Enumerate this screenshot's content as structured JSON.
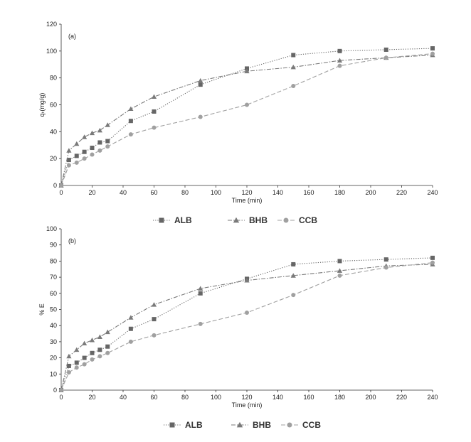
{
  "chart_data": [
    {
      "type": "line",
      "panel_label": "(a)",
      "xlabel": "Time (min)",
      "ylabel": "qₜ(mg/g)",
      "xlim": [
        0,
        240
      ],
      "ylim": [
        0,
        120
      ],
      "xticks": [
        0,
        20,
        40,
        60,
        80,
        100,
        120,
        140,
        160,
        180,
        200,
        220,
        240
      ],
      "yticks": [
        0,
        20,
        40,
        60,
        80,
        100,
        120
      ],
      "grid": false,
      "legend_position": "bottom",
      "series": [
        {
          "name": "ALB",
          "marker": "square",
          "line": "dotted",
          "color": "#666666",
          "x": [
            0,
            5,
            10,
            15,
            20,
            25,
            30,
            45,
            60,
            90,
            120,
            150,
            180,
            210,
            240
          ],
          "y": [
            0,
            19,
            22,
            25,
            28,
            32,
            33,
            48,
            55,
            75,
            87,
            97,
            100,
            101,
            102
          ]
        },
        {
          "name": "BHB",
          "marker": "triangle",
          "line": "dashdot",
          "color": "#7a7a7a",
          "x": [
            0,
            5,
            10,
            15,
            20,
            25,
            30,
            45,
            60,
            90,
            120,
            150,
            180,
            210,
            240
          ],
          "y": [
            0,
            26,
            31,
            36,
            39,
            41,
            45,
            57,
            66,
            78,
            85,
            88,
            93,
            95,
            97
          ]
        },
        {
          "name": "CCB",
          "marker": "circle",
          "line": "dashed",
          "color": "#a0a0a0",
          "x": [
            0,
            5,
            10,
            15,
            20,
            25,
            30,
            45,
            60,
            90,
            120,
            150,
            180,
            210,
            240
          ],
          "y": [
            0,
            15,
            17,
            20,
            23,
            26,
            29,
            38,
            43,
            51,
            60,
            74,
            89,
            95,
            98
          ]
        }
      ]
    },
    {
      "type": "line",
      "panel_label": "(b)",
      "xlabel": "Time (min)",
      "ylabel": "% E",
      "xlim": [
        0,
        240
      ],
      "ylim": [
        0,
        100
      ],
      "xticks": [
        0,
        20,
        40,
        60,
        80,
        100,
        120,
        140,
        160,
        180,
        200,
        220,
        240
      ],
      "yticks": [
        0,
        10,
        20,
        30,
        40,
        50,
        60,
        70,
        80,
        90,
        100
      ],
      "grid": false,
      "legend_position": "bottom",
      "series": [
        {
          "name": "ALB",
          "marker": "square",
          "line": "dotted",
          "color": "#666666",
          "x": [
            0,
            5,
            10,
            15,
            20,
            25,
            30,
            45,
            60,
            90,
            120,
            150,
            180,
            210,
            240
          ],
          "y": [
            0,
            15,
            17,
            20,
            23,
            25,
            27,
            38,
            44,
            60,
            69,
            78,
            80,
            81,
            82
          ]
        },
        {
          "name": "BHB",
          "marker": "triangle",
          "line": "dashdot",
          "color": "#7a7a7a",
          "x": [
            0,
            5,
            10,
            15,
            20,
            25,
            30,
            45,
            60,
            90,
            120,
            150,
            180,
            210,
            240
          ],
          "y": [
            0,
            21,
            25,
            29,
            31,
            33,
            36,
            45,
            53,
            63,
            68,
            71,
            74,
            77,
            78
          ]
        },
        {
          "name": "CCB",
          "marker": "circle",
          "line": "dashed",
          "color": "#a0a0a0",
          "x": [
            0,
            5,
            10,
            15,
            20,
            25,
            30,
            45,
            60,
            90,
            120,
            150,
            180,
            210,
            240
          ],
          "y": [
            0,
            11,
            14,
            16,
            19,
            21,
            23,
            30,
            34,
            41,
            48,
            59,
            71,
            76,
            79
          ]
        }
      ]
    }
  ]
}
